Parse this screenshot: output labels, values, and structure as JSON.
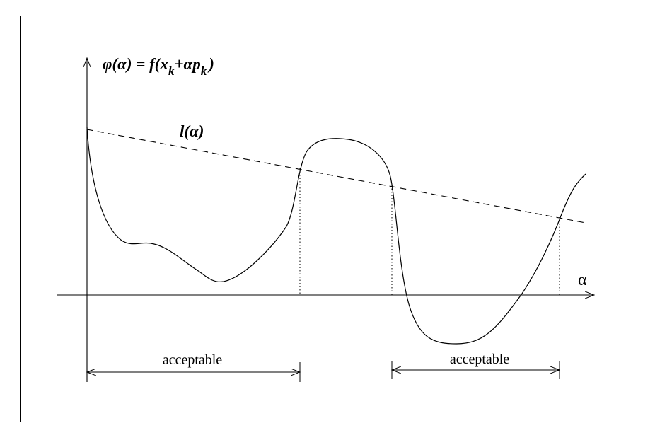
{
  "diagram": {
    "y_axis_label": {
      "prefix": "φ(α) = ",
      "f": "f(x",
      "sub1": "k",
      "mid": "+αp",
      "sub2": "k",
      "close": ")"
    },
    "x_axis_label": "α",
    "line_label": "l(α)",
    "regions": [
      {
        "label": "acceptable"
      },
      {
        "label": "acceptable"
      }
    ]
  }
}
